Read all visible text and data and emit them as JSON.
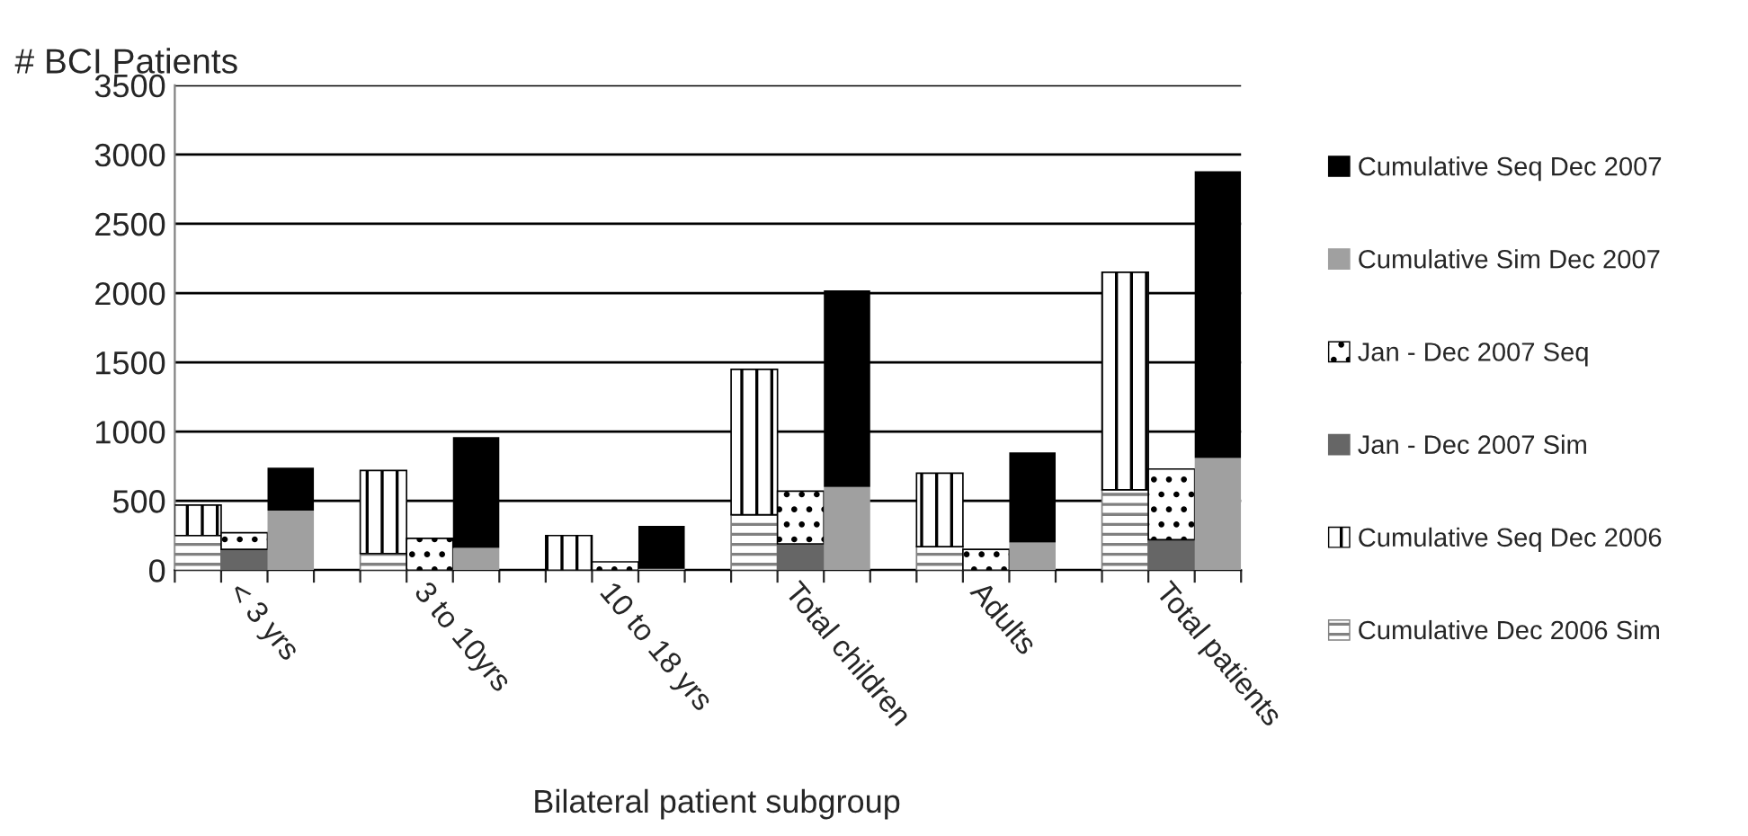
{
  "chart_data": {
    "type": "bar",
    "ylabel": "# BCI Patients",
    "xlabel": "Bilateral patient subgroup",
    "stacked": true,
    "categories": [
      null,
      "< 3 yrs",
      null,
      null,
      null,
      "3 to 10yrs",
      null,
      null,
      null,
      "10 to 18 yrs",
      null,
      null,
      null,
      "Total children",
      null,
      null,
      null,
      "Adults",
      null,
      null,
      null,
      "Total patients",
      null
    ],
    "series": [
      {
        "name": "Cumulative Dec 2006 Sim",
        "color": "#808080",
        "values": [
          250,
          null,
          null,
          null,
          120,
          null,
          null,
          null,
          0,
          null,
          null,
          null,
          400,
          null,
          null,
          null,
          170,
          null,
          null,
          null,
          580,
          null,
          null
        ]
      },
      {
        "name": "Cumulative Seq Dec 2006",
        "color": "#000000",
        "values": [
          220,
          null,
          null,
          null,
          600,
          null,
          null,
          null,
          250,
          null,
          null,
          null,
          1050,
          null,
          null,
          null,
          530,
          null,
          null,
          null,
          1570,
          null,
          null
        ]
      },
      {
        "name": "Jan - Dec 2007 Sim",
        "color": "#666666",
        "values": [
          null,
          150,
          null,
          null,
          null,
          0,
          null,
          null,
          null,
          0,
          null,
          null,
          null,
          190,
          null,
          null,
          null,
          0,
          null,
          null,
          null,
          220,
          null
        ]
      },
      {
        "name": "Jan - Dec 2007 Seq",
        "color": "#000000",
        "values": [
          null,
          120,
          null,
          null,
          null,
          230,
          null,
          null,
          null,
          60,
          null,
          null,
          null,
          380,
          null,
          null,
          null,
          150,
          null,
          null,
          null,
          510,
          null
        ]
      },
      {
        "name": "Cumulative Sim Dec 2007",
        "color": "#a0a0a0",
        "values": [
          null,
          null,
          430,
          null,
          null,
          null,
          160,
          null,
          null,
          null,
          10,
          null,
          null,
          null,
          600,
          null,
          null,
          null,
          200,
          null,
          null,
          null,
          810
        ]
      },
      {
        "name": "Cumulative Seq Dec 2007",
        "color": "#000000",
        "values": [
          null,
          null,
          310,
          null,
          null,
          null,
          800,
          null,
          null,
          null,
          310,
          null,
          null,
          null,
          1420,
          null,
          null,
          null,
          650,
          null,
          null,
          null,
          2070
        ]
      }
    ],
    "ylim": [
      0,
      3500
    ],
    "yticks": [
      0,
      500,
      1000,
      1500,
      2000,
      2500,
      3000,
      3500
    ],
    "grid": "y",
    "legend": "right"
  }
}
